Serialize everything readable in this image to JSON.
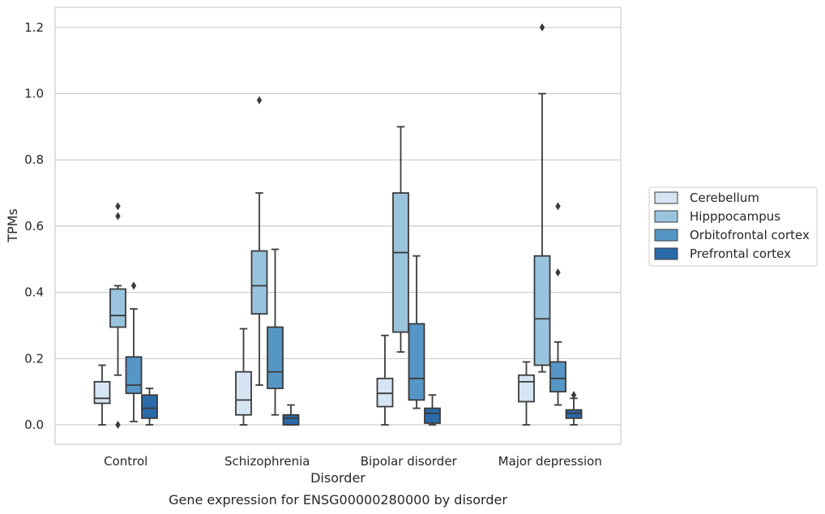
{
  "chart_data": {
    "type": "box",
    "title": "",
    "caption": "Gene expression for ENSG00000280000 by disorder",
    "xlabel": "Disorder",
    "ylabel": "TPMs",
    "ylim": [
      -0.06,
      1.26
    ],
    "yticks": [
      "0.0",
      "0.2",
      "0.4",
      "0.6",
      "0.8",
      "1.0",
      "1.2"
    ],
    "grid": "horizontal",
    "legend_position": "right",
    "categories": [
      "Control",
      "Schizophrenia",
      "Bipolar disorder",
      "Major depression"
    ],
    "series": [
      {
        "name": "Cerebellum",
        "color": "#d6e5f3",
        "boxes": [
          {
            "category": "Control",
            "whisker_low": 0.0,
            "q1": 0.065,
            "median": 0.08,
            "q3": 0.13,
            "whisker_high": 0.18,
            "outliers": []
          },
          {
            "category": "Schizophrenia",
            "whisker_low": 0.0,
            "q1": 0.03,
            "median": 0.075,
            "q3": 0.16,
            "whisker_high": 0.29,
            "outliers": []
          },
          {
            "category": "Bipolar disorder",
            "whisker_low": 0.0,
            "q1": 0.055,
            "median": 0.095,
            "q3": 0.14,
            "whisker_high": 0.27,
            "outliers": []
          },
          {
            "category": "Major depression",
            "whisker_low": 0.0,
            "q1": 0.07,
            "median": 0.13,
            "q3": 0.15,
            "whisker_high": 0.19,
            "outliers": []
          }
        ]
      },
      {
        "name": "Hipppocampus",
        "color": "#9ac4de",
        "boxes": [
          {
            "category": "Control",
            "whisker_low": 0.15,
            "q1": 0.295,
            "median": 0.33,
            "q3": 0.41,
            "whisker_high": 0.42,
            "outliers": [
              0.0,
              0.63,
              0.66
            ]
          },
          {
            "category": "Schizophrenia",
            "whisker_low": 0.12,
            "q1": 0.335,
            "median": 0.42,
            "q3": 0.525,
            "whisker_high": 0.7,
            "outliers": [
              0.98
            ]
          },
          {
            "category": "Bipolar disorder",
            "whisker_low": 0.22,
            "q1": 0.28,
            "median": 0.52,
            "q3": 0.7,
            "whisker_high": 0.9,
            "outliers": []
          },
          {
            "category": "Major depression",
            "whisker_low": 0.16,
            "q1": 0.18,
            "median": 0.32,
            "q3": 0.51,
            "whisker_high": 1.0,
            "outliers": [
              1.2
            ]
          }
        ]
      },
      {
        "name": "Orbitofrontal cortex",
        "color": "#5596c7",
        "boxes": [
          {
            "category": "Control",
            "whisker_low": 0.01,
            "q1": 0.095,
            "median": 0.12,
            "q3": 0.205,
            "whisker_high": 0.35,
            "outliers": [
              0.42
            ]
          },
          {
            "category": "Schizophrenia",
            "whisker_low": 0.03,
            "q1": 0.11,
            "median": 0.16,
            "q3": 0.295,
            "whisker_high": 0.53,
            "outliers": []
          },
          {
            "category": "Bipolar disorder",
            "whisker_low": 0.05,
            "q1": 0.075,
            "median": 0.14,
            "q3": 0.305,
            "whisker_high": 0.51,
            "outliers": []
          },
          {
            "category": "Major depression",
            "whisker_low": 0.06,
            "q1": 0.1,
            "median": 0.14,
            "q3": 0.19,
            "whisker_high": 0.25,
            "outliers": [
              0.46,
              0.66
            ]
          }
        ]
      },
      {
        "name": "Prefrontal cortex",
        "color": "#2a6aa9",
        "boxes": [
          {
            "category": "Control",
            "whisker_low": 0.0,
            "q1": 0.02,
            "median": 0.05,
            "q3": 0.09,
            "whisker_high": 0.11,
            "outliers": []
          },
          {
            "category": "Schizophrenia",
            "whisker_low": 0.0,
            "q1": 0.0,
            "median": 0.02,
            "q3": 0.03,
            "whisker_high": 0.06,
            "outliers": []
          },
          {
            "category": "Bipolar disorder",
            "whisker_low": 0.0,
            "q1": 0.005,
            "median": 0.035,
            "q3": 0.05,
            "whisker_high": 0.09,
            "outliers": []
          },
          {
            "category": "Major depression",
            "whisker_low": 0.0,
            "q1": 0.02,
            "median": 0.035,
            "q3": 0.045,
            "whisker_high": 0.08,
            "outliers": [
              0.09
            ]
          }
        ]
      }
    ]
  }
}
